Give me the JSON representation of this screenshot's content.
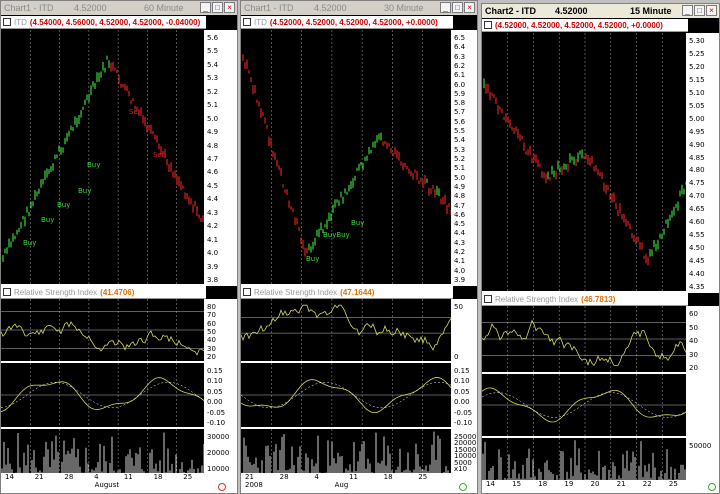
{
  "windows": [
    {
      "title": "Chart1 - ITD",
      "price": "4.52000",
      "interval": "60 Minute",
      "ohlc": "(4.54000, 4.56000, 4.52000, 4.52000, -0.04000)",
      "rsi_label": "Relative Strength Index",
      "rsi_value": "(41.4706)",
      "price_ticks": [
        "5.6",
        "5.5",
        "5.4",
        "5.3",
        "5.2",
        "5.1",
        "5.0",
        "4.9",
        "4.8",
        "4.7",
        "4.6",
        "4.5",
        "4.4",
        "4.3",
        "4.2",
        "4.1",
        "4.0",
        "3.9",
        "3.8"
      ],
      "rsi_ticks": [
        "80",
        "70",
        "60",
        "50",
        "40",
        "30",
        "20"
      ],
      "osc_ticks": [
        "0.15",
        "0.10",
        "0.05",
        "0.00",
        "-0.05",
        "-0.10"
      ],
      "vol_ticks": [
        "30000",
        "20000",
        "10000"
      ],
      "x_ticks": [
        "14",
        "21",
        "28",
        "4",
        "11",
        "18",
        "25"
      ],
      "month": "August",
      "signals": [
        {
          "text": "Buy",
          "cls": "g"
        },
        {
          "text": "Buy",
          "cls": "g"
        },
        {
          "text": "Buy",
          "cls": "g"
        },
        {
          "text": "Buy",
          "cls": "g"
        },
        {
          "text": "Buy",
          "cls": "g"
        },
        {
          "text": "Sell",
          "cls": "r"
        },
        {
          "text": "Sell",
          "cls": "r"
        }
      ]
    },
    {
      "title": "Chart1 - ITD",
      "price": "4.52000",
      "interval": "30 Minute",
      "ohlc": "(4.52000, 4.52000, 4.52000, 4.52000, +0.0000)",
      "rsi_label": "Relative Strength Index",
      "rsi_value": "(47.1644)",
      "price_ticks": [
        "6.5",
        "6.4",
        "6.3",
        "6.2",
        "6.1",
        "6.0",
        "5.9",
        "5.8",
        "5.7",
        "5.6",
        "5.5",
        "5.4",
        "5.3",
        "5.2",
        "5.1",
        "5.0",
        "4.9",
        "4.8",
        "4.7",
        "4.6",
        "4.5",
        "4.4",
        "4.3",
        "4.2",
        "4.1",
        "4.0",
        "3.9"
      ],
      "rsi_ticks": [
        "50",
        "0"
      ],
      "osc_ticks": [
        "0.15",
        "0.10",
        "0.05",
        "0.00",
        "-0.05",
        "-0.10"
      ],
      "vol_ticks": [
        "25000",
        "20000",
        "15000",
        "10000",
        "5000",
        "x10"
      ],
      "x_ticks": [
        "21",
        "28",
        "4",
        "11",
        "18",
        "25"
      ],
      "month": "Aug",
      "year": "2008",
      "signals": [
        {
          "text": "Buy",
          "cls": "g"
        },
        {
          "text": "BuyBuy",
          "cls": "g"
        },
        {
          "text": "Buy",
          "cls": "g"
        }
      ]
    },
    {
      "title": "Chart2 - ITD",
      "price": "4.52000",
      "interval": "15 Minute",
      "ohlc": "(4.52000, 4.52000, 4.52000, 4.52000, +0.0000)",
      "rsi_label": "Relative Strength Index",
      "rsi_value": "(46.7813)",
      "price_ticks": [
        "5.30",
        "5.25",
        "5.20",
        "5.15",
        "5.10",
        "5.05",
        "5.00",
        "4.95",
        "4.90",
        "4.85",
        "4.80",
        "4.75",
        "4.70",
        "4.65",
        "4.60",
        "4.55",
        "4.50",
        "4.45",
        "4.40",
        "4.35"
      ],
      "rsi_ticks": [
        "60",
        "50",
        "40",
        "30",
        "20"
      ],
      "osc_ticks": [],
      "vol_ticks": [
        "50000"
      ],
      "x_ticks": [
        "14",
        "15",
        "18",
        "19",
        "20",
        "21",
        "22",
        "25"
      ],
      "month": "",
      "signals": []
    }
  ],
  "colors": {
    "up": "#39d639",
    "down": "#dd2222",
    "indicator": "#d8d860",
    "volume": "#d0d0d0",
    "grid": "#8a8a8a"
  }
}
